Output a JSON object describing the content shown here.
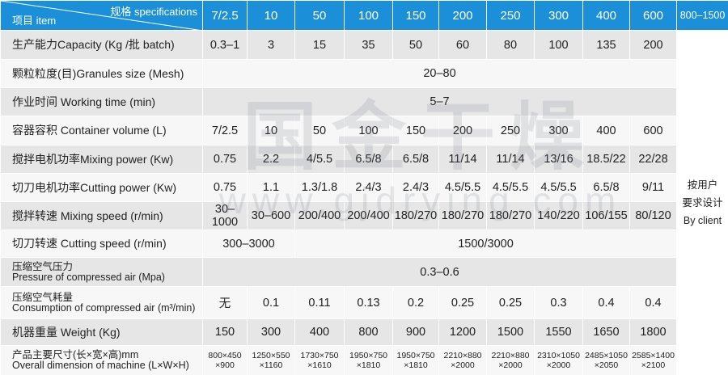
{
  "header": {
    "spec": "规格 specifications",
    "item": "项目 item",
    "columns": [
      "7/2.5",
      "10",
      "50",
      "100",
      "150",
      "200",
      "250",
      "300",
      "400",
      "600",
      "800–1500"
    ]
  },
  "rows": [
    {
      "label": [
        "生产能力Capacity (Kg /批 batch)"
      ],
      "cells": [
        [
          "0.3–1"
        ],
        [
          "3"
        ],
        [
          "15"
        ],
        [
          "35"
        ],
        [
          "50"
        ],
        [
          "60"
        ],
        [
          "80"
        ],
        [
          "100"
        ],
        [
          "135"
        ],
        [
          "200"
        ]
      ]
    },
    {
      "label": [
        "颗粒粒度(目)Granules size (Mesh)"
      ],
      "cells": [
        [
          "20–80"
        ]
      ]
    },
    {
      "label": [
        "作业时间  Working time (min)"
      ],
      "cells": [
        [
          "5–7"
        ]
      ]
    },
    {
      "label": [
        "容器容积 Container volume (L)"
      ],
      "cells": [
        [
          "7/2.5"
        ],
        [
          "10"
        ],
        [
          "50"
        ],
        [
          "100"
        ],
        [
          "150"
        ],
        [
          "200"
        ],
        [
          "250"
        ],
        [
          "300"
        ],
        [
          "400"
        ],
        [
          "600"
        ]
      ]
    },
    {
      "label": [
        "搅拌电机功率Mixing power (Kw)"
      ],
      "cells": [
        [
          "0.75"
        ],
        [
          "2.2"
        ],
        [
          "4/5.5"
        ],
        [
          "6.5/8"
        ],
        [
          "6.5/8"
        ],
        [
          "11/14"
        ],
        [
          "11/14"
        ],
        [
          "13/16"
        ],
        [
          "18.5/22"
        ],
        [
          "22/28"
        ]
      ]
    },
    {
      "label": [
        "切刀电机功率Cutting power (Kw)"
      ],
      "cells": [
        [
          "0.75"
        ],
        [
          "1.1"
        ],
        [
          "1.3/1.8"
        ],
        [
          "2.4/3"
        ],
        [
          "2.4/3"
        ],
        [
          "4.5/5.5"
        ],
        [
          "4.5/5.5"
        ],
        [
          "4.5/5.5"
        ],
        [
          "6.5/8"
        ],
        [
          "9/11"
        ]
      ]
    },
    {
      "label": [
        "搅拌转速 Mixing speed (r/min)"
      ],
      "cells": [
        [
          "30–1000"
        ],
        [
          "30–600"
        ],
        [
          "200/400"
        ],
        [
          "200/400"
        ],
        [
          "180/270"
        ],
        [
          "180/270"
        ],
        [
          "180/270"
        ],
        [
          "140/220"
        ],
        [
          "106/155"
        ],
        [
          "80/120"
        ]
      ]
    },
    {
      "label": [
        "切刀转速 Cutting speed (r/min)"
      ],
      "cells": [
        [
          "300–3000"
        ],
        [
          "1500/3000"
        ]
      ]
    },
    {
      "label": [
        "压缩空气压力",
        "Pressure of compressed air (Mpa)"
      ],
      "cells": [
        [
          "0.3–0.6"
        ]
      ]
    },
    {
      "label": [
        "压缩空气耗量",
        "Consumption of compressed air (m³/min)"
      ],
      "cells": [
        [
          "无"
        ],
        [
          "0.1"
        ],
        [
          "0.11"
        ],
        [
          "0.13"
        ],
        [
          "0.2"
        ],
        [
          "0.25"
        ],
        [
          "0.25"
        ],
        [
          "0.3"
        ],
        [
          "0.4"
        ],
        [
          "0.4"
        ]
      ]
    },
    {
      "label": [
        "机器重量 Weight (Kg)"
      ],
      "cells": [
        [
          "150"
        ],
        [
          "300"
        ],
        [
          "400"
        ],
        [
          "800"
        ],
        [
          "900"
        ],
        [
          "1200"
        ],
        [
          "1500"
        ],
        [
          "1550"
        ],
        [
          "1650"
        ],
        [
          "1800"
        ]
      ]
    },
    {
      "label": [
        "产品主要尺寸(长×宽×高)mm",
        "Overall dimension of machine (L×W×H)"
      ],
      "cells": [
        [
          "800×450",
          "×900"
        ],
        [
          "1250×550",
          "×1160"
        ],
        [
          "1730×750",
          "×1610"
        ],
        [
          "1950×750",
          "×1810"
        ],
        [
          "1950×750",
          "×1810"
        ],
        [
          "2210×880",
          "×2000"
        ],
        [
          "2210×880",
          "×2000"
        ],
        [
          "2310×1050",
          "×2000"
        ],
        [
          "2485×1050",
          "×2050"
        ],
        [
          "2585×1400",
          "×2100"
        ]
      ]
    }
  ],
  "client": [
    "按用户",
    "要求设计",
    "By client"
  ],
  "watermark": {
    "text": "国金干燥",
    "url": "www.gjdrying.com"
  }
}
